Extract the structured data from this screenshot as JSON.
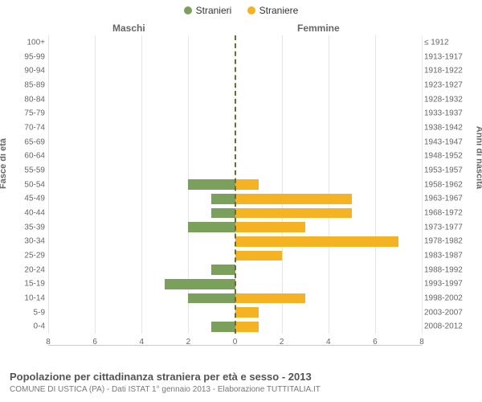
{
  "chart": {
    "type": "population-pyramid",
    "background_color": "#ffffff",
    "grid_color": "#e6e6e6",
    "center_axis_color": "#6b6b3a",
    "text_color": "#666666",
    "legend": [
      {
        "label": "Stranieri",
        "color": "#7ba05b"
      },
      {
        "label": "Straniere",
        "color": "#f5b324"
      }
    ],
    "header_left": "Maschi",
    "header_right": "Femmine",
    "y_title_left": "Fasce di età",
    "y_title_right": "Anni di nascita",
    "x_max": 8,
    "x_ticks": [
      8,
      6,
      4,
      2,
      0,
      2,
      4,
      6,
      8
    ],
    "rows": [
      {
        "age": "100+",
        "birth": "≤ 1912",
        "m": 0,
        "f": 0
      },
      {
        "age": "95-99",
        "birth": "1913-1917",
        "m": 0,
        "f": 0
      },
      {
        "age": "90-94",
        "birth": "1918-1922",
        "m": 0,
        "f": 0
      },
      {
        "age": "85-89",
        "birth": "1923-1927",
        "m": 0,
        "f": 0
      },
      {
        "age": "80-84",
        "birth": "1928-1932",
        "m": 0,
        "f": 0
      },
      {
        "age": "75-79",
        "birth": "1933-1937",
        "m": 0,
        "f": 0
      },
      {
        "age": "70-74",
        "birth": "1938-1942",
        "m": 0,
        "f": 0
      },
      {
        "age": "65-69",
        "birth": "1943-1947",
        "m": 0,
        "f": 0
      },
      {
        "age": "60-64",
        "birth": "1948-1952",
        "m": 0,
        "f": 0
      },
      {
        "age": "55-59",
        "birth": "1953-1957",
        "m": 0,
        "f": 0
      },
      {
        "age": "50-54",
        "birth": "1958-1962",
        "m": 2,
        "f": 1
      },
      {
        "age": "45-49",
        "birth": "1963-1967",
        "m": 1,
        "f": 5
      },
      {
        "age": "40-44",
        "birth": "1968-1972",
        "m": 1,
        "f": 5
      },
      {
        "age": "35-39",
        "birth": "1973-1977",
        "m": 2,
        "f": 3
      },
      {
        "age": "30-34",
        "birth": "1978-1982",
        "m": 0,
        "f": 7
      },
      {
        "age": "25-29",
        "birth": "1983-1987",
        "m": 0,
        "f": 2
      },
      {
        "age": "20-24",
        "birth": "1988-1992",
        "m": 1,
        "f": 0
      },
      {
        "age": "15-19",
        "birth": "1993-1997",
        "m": 3,
        "f": 0
      },
      {
        "age": "10-14",
        "birth": "1998-2002",
        "m": 2,
        "f": 3
      },
      {
        "age": "5-9",
        "birth": "2003-2007",
        "m": 0,
        "f": 1
      },
      {
        "age": "0-4",
        "birth": "2008-2012",
        "m": 1,
        "f": 1
      }
    ],
    "bar_colors": {
      "m": "#7ba05b",
      "f": "#f5b324"
    },
    "title_main": "Popolazione per cittadinanza straniera per età e sesso - 2013",
    "title_sub": "COMUNE DI USTICA (PA) - Dati ISTAT 1° gennaio 2013 - Elaborazione TUTTITALIA.IT",
    "label_fontsize": 10,
    "title_fontsize": 13,
    "sub_fontsize": 10
  }
}
